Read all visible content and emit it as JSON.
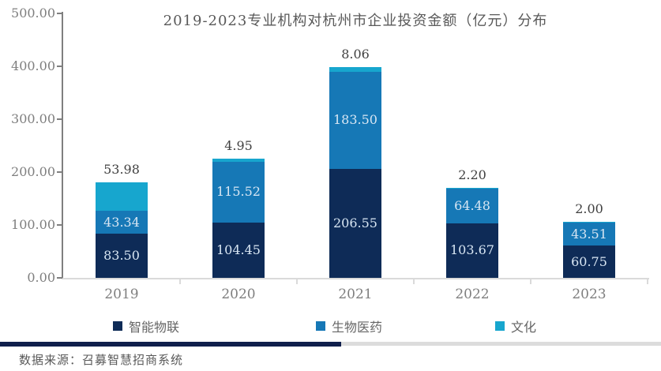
{
  "title": "2019-2023专业机构对杭州市企业投资金额（亿元）分布",
  "source_note": "数据来源：召募智慧招商系统",
  "chart_data": {
    "type": "bar",
    "stacked": true,
    "title": "2019-2023专业机构对杭州市企业投资金额（亿元）分布",
    "categories": [
      "2019",
      "2020",
      "2021",
      "2022",
      "2023"
    ],
    "series": [
      {
        "name": "智能物联",
        "color": "#0e2b57",
        "label_color": "#d8e6f3",
        "label_position": "inside",
        "values": [
          83.5,
          104.45,
          206.55,
          103.67,
          60.75
        ]
      },
      {
        "name": "生物医药",
        "color": "#1678b6",
        "label_color": "#d8e6f3",
        "label_position": "inside",
        "values": [
          43.34,
          115.52,
          183.5,
          64.48,
          43.51
        ]
      },
      {
        "name": "文化",
        "color": "#17a6ce",
        "label_color": "#404040",
        "label_position": "above",
        "values": [
          53.98,
          4.95,
          8.06,
          2.2,
          2.0
        ]
      }
    ],
    "ylim": [
      0,
      500
    ],
    "yticks": [
      "0.00",
      "100.00",
      "200.00",
      "300.00",
      "400.00",
      "500.00"
    ],
    "xlabel": "",
    "ylabel": "",
    "grid": false,
    "legend_position": "bottom",
    "value_label_decimals": 2
  },
  "colors": {
    "background": "#ffffff",
    "title_text": "#595959",
    "axis_line": "#7f7f7f",
    "x_axis_line": "#dadada",
    "tick_label": "#7f7f7f",
    "legend_text": "#666666",
    "separator_navy": "#101f4c",
    "separator_gray": "#dcdcdc",
    "source_text": "#595959"
  }
}
